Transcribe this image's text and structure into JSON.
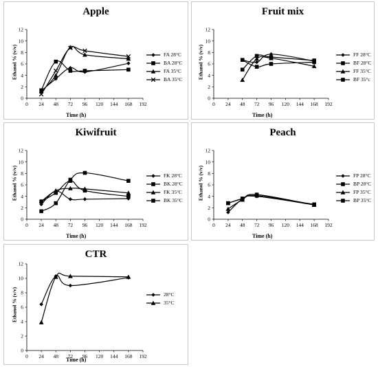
{
  "chart_data": [
    {
      "type": "line",
      "title": "Apple",
      "xlabel": "Time (h)",
      "ylabel": "Ethanol % (v/v)",
      "xlim": [
        0,
        192
      ],
      "ylim": [
        0,
        12
      ],
      "xticks": [
        "0",
        "24",
        "48",
        "72",
        "96",
        "120",
        "144",
        "168",
        "192"
      ],
      "yticks": [
        "0",
        "2",
        "4",
        "6",
        "8",
        "10",
        "12"
      ],
      "series": [
        {
          "name": "FA 28°C",
          "marker": "diamond",
          "x": [
            24,
            48,
            72,
            96,
            168
          ],
          "y": [
            1.3,
            3.4,
            5.3,
            4.6,
            6.1
          ]
        },
        {
          "name": "BA 28°C",
          "marker": "square",
          "x": [
            24,
            48,
            72,
            96,
            168
          ],
          "y": [
            1.4,
            6.4,
            4.8,
            4.8,
            5.0
          ]
        },
        {
          "name": "FA 35°C",
          "marker": "triangle",
          "x": [
            24,
            48,
            72,
            96,
            168
          ],
          "y": [
            1.2,
            4.0,
            8.9,
            7.6,
            6.9
          ]
        },
        {
          "name": "BA 35°C",
          "marker": "x",
          "x": [
            24,
            48,
            72,
            96,
            168
          ],
          "y": [
            0.7,
            4.8,
            8.8,
            8.3,
            7.3
          ]
        }
      ]
    },
    {
      "type": "line",
      "title": "Fruit mix",
      "xlabel": "Time (h)",
      "ylabel": "Ethanol % (v/v)",
      "xlim": [
        0,
        192
      ],
      "ylim": [
        0,
        12
      ],
      "xticks": [
        "0",
        "24",
        "48",
        "72",
        "96",
        "120",
        "144",
        "168",
        "192"
      ],
      "yticks": [
        "0",
        "2",
        "4",
        "6",
        "8",
        "10",
        "12"
      ],
      "series": [
        {
          "name": "FF 28°C",
          "marker": "diamond",
          "x": [
            48,
            72,
            96,
            168
          ],
          "y": [
            6.7,
            6.3,
            7.7,
            6.5
          ]
        },
        {
          "name": "BF 28°C",
          "marker": "square",
          "x": [
            48,
            72,
            96,
            168
          ],
          "y": [
            5.0,
            7.4,
            7.2,
            6.6
          ]
        },
        {
          "name": "FF 35°C",
          "marker": "triangle",
          "x": [
            48,
            72,
            96,
            168
          ],
          "y": [
            3.2,
            6.9,
            7.0,
            5.6
          ]
        },
        {
          "name": "BF 35°c",
          "marker": "square",
          "x": [
            48,
            72,
            96,
            168
          ],
          "y": [
            6.7,
            5.5,
            6.0,
            6.3
          ]
        }
      ]
    },
    {
      "type": "line",
      "title": "Kiwifruit",
      "xlabel": "Time (h)",
      "ylabel": "Ethanol % (v/v)",
      "xlim": [
        0,
        192
      ],
      "ylim": [
        0,
        12
      ],
      "xticks": [
        "0",
        "24",
        "48",
        "72",
        "96",
        "120",
        "144",
        "168",
        "192"
      ],
      "yticks": [
        "0",
        "2",
        "4",
        "6",
        "8",
        "10",
        "12"
      ],
      "series": [
        {
          "name": "FK 28°C",
          "marker": "diamond",
          "x": [
            24,
            48,
            72,
            96,
            168
          ],
          "y": [
            2.6,
            4.9,
            3.5,
            3.5,
            3.6
          ]
        },
        {
          "name": "BK 28°C",
          "marker": "square",
          "x": [
            24,
            48,
            72,
            96,
            168
          ],
          "y": [
            1.4,
            2.8,
            6.9,
            8.1,
            6.7
          ]
        },
        {
          "name": "FK 35°C",
          "marker": "triangle",
          "x": [
            24,
            48,
            72,
            96,
            168
          ],
          "y": [
            3.1,
            5.0,
            5.4,
            5.3,
            4.6
          ]
        },
        {
          "name": "BK 35°C",
          "marker": "square",
          "x": [
            24,
            48,
            72,
            96,
            168
          ],
          "y": [
            3.1,
            4.6,
            6.7,
            5.0,
            4.0
          ]
        }
      ]
    },
    {
      "type": "line",
      "title": "Peach",
      "xlabel": "Time (h)",
      "ylabel": "Ethanol % (v/v)",
      "xlim": [
        0,
        192
      ],
      "ylim": [
        0,
        12
      ],
      "xticks": [
        "0",
        "24",
        "48",
        "72",
        "96",
        "120",
        "144",
        "168",
        "192"
      ],
      "yticks": [
        "0",
        "2",
        "4",
        "6",
        "8",
        "10",
        "12"
      ],
      "series": [
        {
          "name": "FP 28°C",
          "marker": "diamond",
          "x": [
            24,
            48,
            72,
            168
          ],
          "y": [
            1.2,
            3.5,
            4.0,
            2.5
          ]
        },
        {
          "name": "BP 28°C",
          "marker": "square",
          "x": [
            24,
            48,
            72,
            168
          ],
          "y": [
            2.8,
            3.6,
            4.1,
            2.6
          ]
        },
        {
          "name": "FP 35°C",
          "marker": "triangle",
          "x": [
            24,
            48,
            72,
            168
          ],
          "y": [
            1.8,
            3.4,
            4.3,
            2.5
          ]
        },
        {
          "name": "BP 35°C",
          "marker": "square",
          "x": [
            24,
            48,
            72,
            168
          ],
          "y": [
            2.8,
            3.6,
            4.3,
            2.5
          ]
        }
      ]
    },
    {
      "type": "line",
      "title": "CTR",
      "xlabel": "Time (h)",
      "ylabel": "Ethanol % (v/v)",
      "xlim": [
        0,
        192
      ],
      "ylim": [
        0,
        12
      ],
      "xticks": [
        "0",
        "24",
        "48",
        "72",
        "96",
        "120",
        "144",
        "168",
        "192"
      ],
      "yticks": [
        "0",
        "2",
        "4",
        "6",
        "8",
        "10",
        "12"
      ],
      "series": [
        {
          "name": "28°C",
          "marker": "diamond",
          "x": [
            24,
            48,
            72,
            168
          ],
          "y": [
            6.4,
            10.3,
            9.0,
            10.1
          ]
        },
        {
          "name": "35°C",
          "marker": "triangle",
          "x": [
            24,
            48,
            72,
            168
          ],
          "y": [
            3.9,
            10.2,
            10.3,
            10.2
          ]
        }
      ]
    }
  ]
}
